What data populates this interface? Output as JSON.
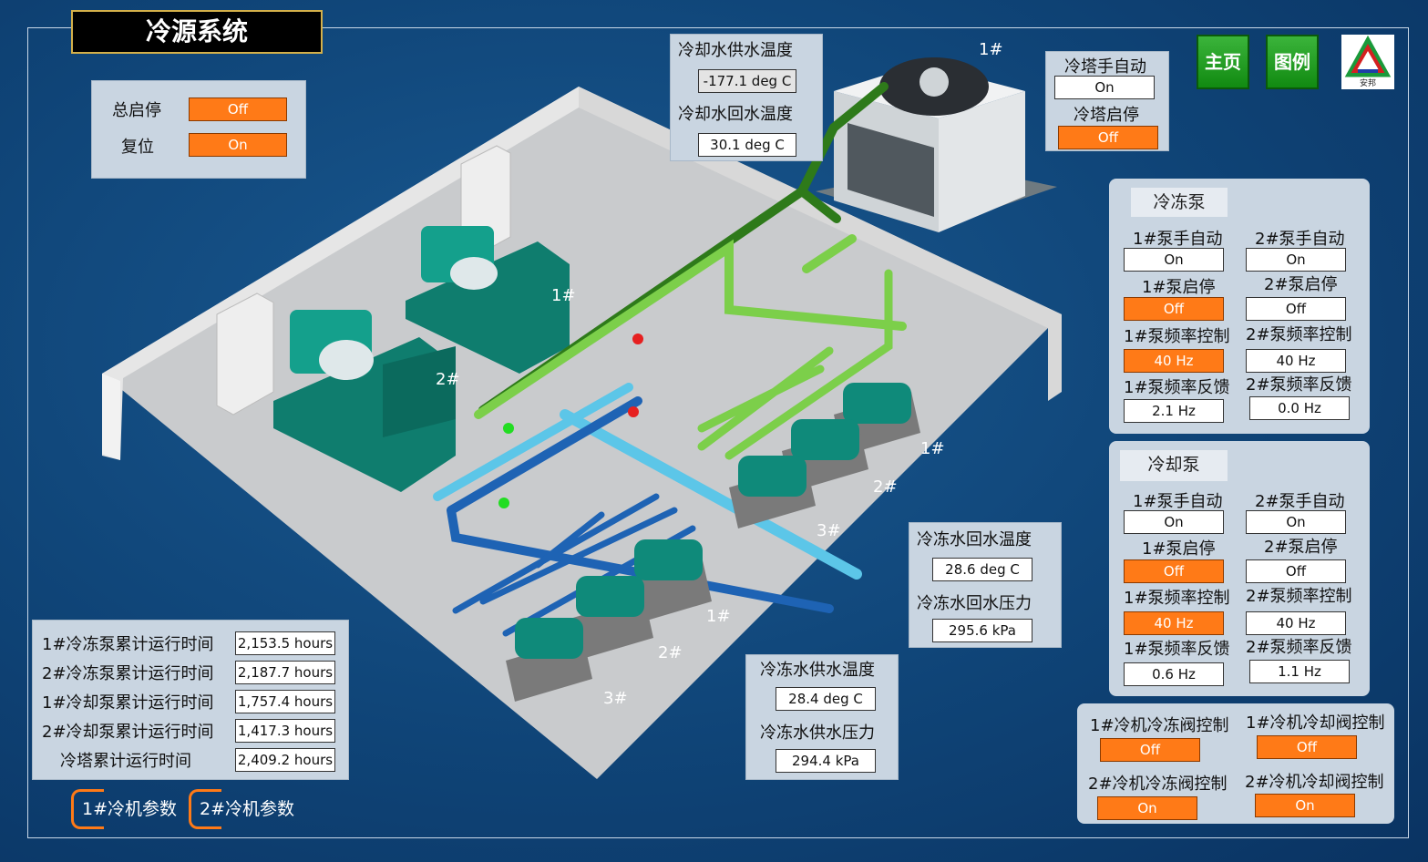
{
  "title": "冷源系统",
  "nav": {
    "home": "主页",
    "legend": "图例",
    "logo_text": "安邦"
  },
  "master": {
    "start_stop_label": "总启停",
    "start_stop": "Off",
    "reset_label": "复位",
    "reset": "On"
  },
  "cooling_water": {
    "supply_temp_label": "冷却水供水温度",
    "supply_temp": "-177.1 deg C",
    "return_temp_label": "冷却水回水温度",
    "return_temp": "30.1 deg C"
  },
  "tower": {
    "manual_auto_label": "冷塔手自动",
    "manual_auto": "On",
    "start_stop_label": "冷塔启停",
    "start_stop": "Off",
    "tag": "1#"
  },
  "chilled_pump": {
    "header": "冷冻泵",
    "p1": {
      "manual_auto_label": "1#泵手自动",
      "manual_auto": "On",
      "start_stop_label": "1#泵启停",
      "start_stop": "Off",
      "freq_ctrl_label": "1#泵频率控制",
      "freq_ctrl": "40 Hz",
      "freq_fb_label": "1#泵频率反馈",
      "freq_fb": "2.1 Hz"
    },
    "p2": {
      "manual_auto_label": "2#泵手自动",
      "manual_auto": "On",
      "start_stop_label": "2#泵启停",
      "start_stop": "Off",
      "freq_ctrl_label": "2#泵频率控制",
      "freq_ctrl": "40 Hz",
      "freq_fb_label": "2#泵频率反馈",
      "freq_fb": "0.0 Hz"
    }
  },
  "cooling_pump": {
    "header": "冷却泵",
    "p1": {
      "manual_auto_label": "1#泵手自动",
      "manual_auto": "On",
      "start_stop_label": "1#泵启停",
      "start_stop": "Off",
      "freq_ctrl_label": "1#泵频率控制",
      "freq_ctrl": "40 Hz",
      "freq_fb_label": "1#泵频率反馈",
      "freq_fb": "0.6 Hz"
    },
    "p2": {
      "manual_auto_label": "2#泵手自动",
      "manual_auto": "On",
      "start_stop_label": "2#泵启停",
      "start_stop": "Off",
      "freq_ctrl_label": "2#泵频率控制",
      "freq_ctrl": "40 Hz",
      "freq_fb_label": "2#泵频率反馈",
      "freq_fb": "1.1 Hz"
    }
  },
  "valves": {
    "c1_chill_label": "1#冷机冷冻阀控制",
    "c1_chill": "Off",
    "c1_cool_label": "1#冷机冷却阀控制",
    "c1_cool": "Off",
    "c2_chill_label": "2#冷机冷冻阀控制",
    "c2_chill": "On",
    "c2_cool_label": "2#冷机冷却阀控制",
    "c2_cool": "On"
  },
  "chilled_water": {
    "return_temp_label": "冷冻水回水温度",
    "return_temp": "28.6 deg C",
    "return_press_label": "冷冻水回水压力",
    "return_press": "295.6 kPa",
    "supply_temp_label": "冷冻水供水温度",
    "supply_temp": "28.4 deg C",
    "supply_press_label": "冷冻水供水压力",
    "supply_press": "294.4 kPa"
  },
  "runtime": [
    {
      "label": "1#冷冻泵累计运行时间",
      "value": "2,153.5 hours"
    },
    {
      "label": "2#冷冻泵累计运行时间",
      "value": "2,187.7 hours"
    },
    {
      "label": "1#冷却泵累计运行时间",
      "value": "1,757.4 hours"
    },
    {
      "label": "2#冷却泵累计运行时间",
      "value": "1,417.3 hours"
    },
    {
      "label": "冷塔累计运行时间",
      "value": "2,409.2 hours"
    }
  ],
  "tabs": {
    "chiller1": "1#冷机参数",
    "chiller2": "2#冷机参数"
  },
  "tags": {
    "chiller1": "1#",
    "chiller2": "2#",
    "cpump1": "1#",
    "cpump2": "2#",
    "cpump3": "3#",
    "wpump1": "1#",
    "wpump2": "2#",
    "wpump3": "3#"
  },
  "colors": {
    "on": "#ff7a17",
    "panel": "#c9d5e1",
    "pipe_light_green": "#7ccf4a",
    "pipe_dark_green": "#2e7a1a",
    "pipe_blue": "#1e63b4",
    "pipe_cyan": "#5cc6e8",
    "equipment": "#0f8a7a"
  }
}
